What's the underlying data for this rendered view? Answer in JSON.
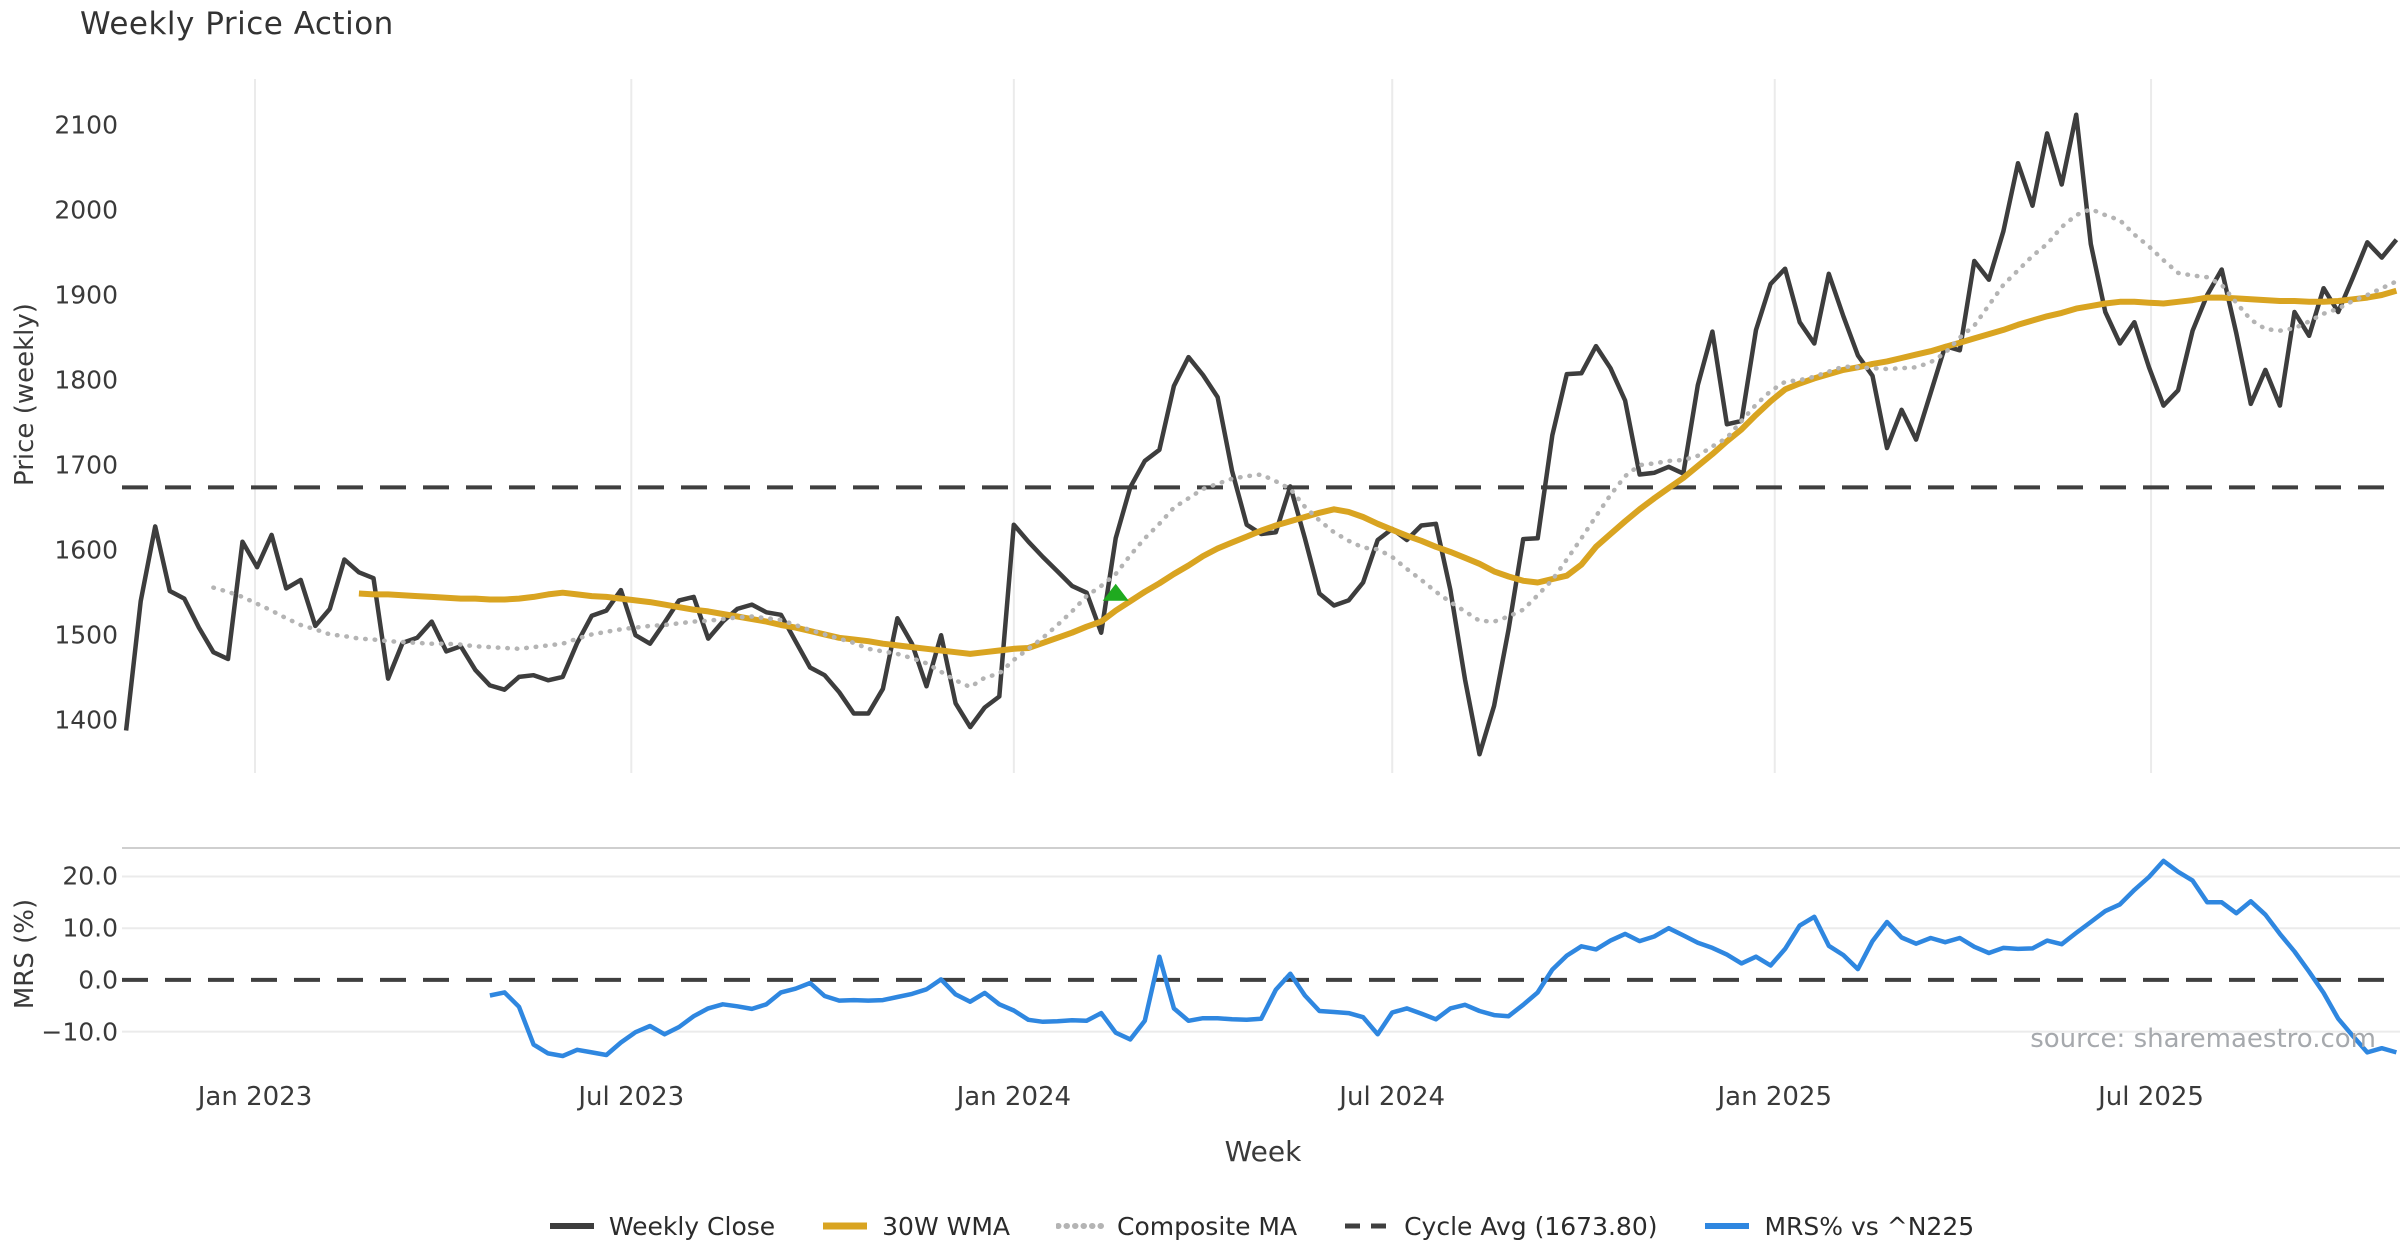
{
  "title": "Weekly Price Action",
  "source_note": "source: sharemaestro.com",
  "colors": {
    "weekly_close": "#3d3d3d",
    "wma_30w": "#d9a421",
    "composite_ma": "#b4b4b4",
    "cycle_avg": "#3f3f3f",
    "mrs_line": "#2f87e0",
    "marker_green": "#1faa1f",
    "gridline": "#ebebeb",
    "panel_spine": "#cfcfcf",
    "tick_text": "#3a3a3a",
    "source_text": "#a6a9ad"
  },
  "legend": {
    "items": [
      {
        "label": "Weekly Close",
        "style": "solid",
        "color": "#3d3d3d",
        "width": 5
      },
      {
        "label": "30W WMA",
        "style": "solid",
        "color": "#d9a421",
        "width": 6
      },
      {
        "label": "Composite MA",
        "style": "dotted",
        "color": "#b4b4b4",
        "width": 5
      },
      {
        "label": "Cycle Avg (1673.80)",
        "style": "dashed",
        "color": "#3f3f3f",
        "width": 4
      },
      {
        "label": "MRS% vs ^N225",
        "style": "solid",
        "color": "#2f87e0",
        "width": 5
      }
    ]
  },
  "chart_data": [
    {
      "type": "line",
      "panel": "price",
      "title": "Weekly Price Action",
      "xlabel": "Week",
      "ylabel": "Price (weekly)",
      "x_start_date": "2022-10-31",
      "x_step_days": 7,
      "ylim": [
        1338,
        2154
      ],
      "grid": "vertical",
      "legend_position": "bottom-center",
      "yticks": [
        {
          "label": "2100",
          "value": 2100
        },
        {
          "label": "2000",
          "value": 2000
        },
        {
          "label": "1900",
          "value": 1900
        },
        {
          "label": "1800",
          "value": 1800
        },
        {
          "label": "1700",
          "value": 1700
        },
        {
          "label": "1600",
          "value": 1600
        },
        {
          "label": "1500",
          "value": 1500
        },
        {
          "label": "1400",
          "value": 1400
        }
      ],
      "xticks": [
        {
          "label": "Jan 2023",
          "date": "2023-01-01"
        },
        {
          "label": "Jul 2023",
          "date": "2023-07-01"
        },
        {
          "label": "Jan 2024",
          "date": "2024-01-01"
        },
        {
          "label": "Jul 2024",
          "date": "2024-07-01"
        },
        {
          "label": "Jan 2025",
          "date": "2025-01-01"
        },
        {
          "label": "Jul 2025",
          "date": "2025-07-01"
        }
      ],
      "hline": {
        "label": "Cycle Avg (1673.80)",
        "value": 1673.8,
        "style": "dashed",
        "color": "#3f3f3f"
      },
      "marker": {
        "shape": "triangle-up",
        "color": "#1faa1f",
        "week_index": 68,
        "value": 1550
      },
      "series": [
        {
          "name": "Weekly Close",
          "color": "#3d3d3d",
          "style": "solid",
          "width": 4.5,
          "values": [
            1388,
            1540,
            1628,
            1552,
            1543,
            1509,
            1480,
            1472,
            1610,
            1580,
            1618,
            1555,
            1565,
            1511,
            1531,
            1589,
            1574,
            1567,
            1449,
            1491,
            1497,
            1516,
            1481,
            1487,
            1459,
            1441,
            1436,
            1451,
            1453,
            1447,
            1451,
            1491,
            1523,
            1529,
            1553,
            1500,
            1490,
            1515,
            1541,
            1545,
            1496,
            1516,
            1531,
            1536,
            1527,
            1524,
            1493,
            1462,
            1453,
            1433,
            1408,
            1408,
            1437,
            1520,
            1490,
            1440,
            1500,
            1420,
            1392,
            1415,
            1428,
            1630,
            1610,
            1592,
            1575,
            1558,
            1550,
            1503,
            1614,
            1674,
            1705,
            1718,
            1793,
            1827,
            1806,
            1780,
            1693,
            1630,
            1619,
            1621,
            1675,
            1614,
            1549,
            1535,
            1541,
            1562,
            1612,
            1625,
            1612,
            1629,
            1631,
            1553,
            1448,
            1360,
            1417,
            1507,
            1613,
            1614,
            1735,
            1807,
            1808,
            1840,
            1814,
            1776,
            1689,
            1691,
            1698,
            1690,
            1794,
            1857,
            1748,
            1752,
            1859,
            1913,
            1931,
            1868,
            1843,
            1925,
            1875,
            1829,
            1805,
            1720,
            1765,
            1730,
            1785,
            1840,
            1835,
            1940,
            1918,
            1975,
            2055,
            2005,
            2090,
            2030,
            2112,
            1960,
            1880,
            1843,
            1868,
            1815,
            1770,
            1788,
            1858,
            1900,
            1930,
            1855,
            1772,
            1812,
            1770,
            1880,
            1852,
            1908,
            1880,
            1920,
            1962,
            1944,
            1965
          ]
        },
        {
          "name": "30W WMA",
          "color": "#d9a421",
          "style": "solid",
          "width": 6,
          "values": [
            null,
            null,
            null,
            null,
            null,
            null,
            null,
            null,
            null,
            null,
            null,
            null,
            null,
            null,
            null,
            null,
            1549,
            1548,
            1548,
            1547,
            1546,
            1545,
            1544,
            1543,
            1543,
            1542,
            1542,
            1543,
            1545,
            1548,
            1550,
            1548,
            1546,
            1545,
            1543,
            1541,
            1539,
            1536,
            1533,
            1530,
            1528,
            1525,
            1522,
            1519,
            1516,
            1512,
            1509,
            1505,
            1501,
            1497,
            1495,
            1493,
            1490,
            1488,
            1486,
            1484,
            1482,
            1480,
            1478,
            1480,
            1482,
            1484,
            1485,
            1491,
            1497,
            1503,
            1510,
            1516,
            1529,
            1540,
            1551,
            1561,
            1572,
            1582,
            1593,
            1602,
            1609,
            1616,
            1623,
            1629,
            1634,
            1639,
            1644,
            1648,
            1645,
            1639,
            1631,
            1624,
            1617,
            1611,
            1604,
            1598,
            1591,
            1584,
            1575,
            1569,
            1564,
            1562,
            1566,
            1570,
            1583,
            1604,
            1619,
            1634,
            1648,
            1661,
            1673,
            1685,
            1699,
            1713,
            1728,
            1742,
            1759,
            1775,
            1789,
            1796,
            1802,
            1807,
            1812,
            1815,
            1819,
            1822,
            1826,
            1830,
            1834,
            1839,
            1844,
            1849,
            1854,
            1859,
            1865,
            1870,
            1875,
            1879,
            1884,
            1887,
            1890,
            1892,
            1892,
            1891,
            1890,
            1892,
            1894,
            1897,
            1897,
            1896,
            1895,
            1894,
            1893,
            1893,
            1892,
            1892,
            1893,
            1895,
            1897,
            1900,
            1905
          ]
        },
        {
          "name": "Composite MA",
          "color": "#b4b4b4",
          "style": "dotted",
          "width": 4.5,
          "values": [
            null,
            null,
            null,
            null,
            null,
            null,
            1556,
            1551,
            1545,
            1537,
            1529,
            1520,
            1512,
            1507,
            1501,
            1499,
            1496,
            1495,
            1493,
            1492,
            1491,
            1490,
            1490,
            1489,
            1487,
            1486,
            1485,
            1484,
            1486,
            1488,
            1490,
            1496,
            1501,
            1504,
            1507,
            1509,
            1511,
            1512,
            1514,
            1516,
            1517,
            1519,
            1521,
            1522,
            1520,
            1518,
            1512,
            1506,
            1501,
            1496,
            1491,
            1484,
            1481,
            1478,
            1473,
            1467,
            1457,
            1447,
            1439,
            1450,
            1455,
            1471,
            1484,
            1497,
            1512,
            1528,
            1546,
            1558,
            1572,
            1594,
            1614,
            1631,
            1650,
            1661,
            1672,
            1678,
            1684,
            1687,
            1689,
            1681,
            1672,
            1651,
            1635,
            1621,
            1611,
            1603,
            1601,
            1592,
            1578,
            1565,
            1551,
            1539,
            1528,
            1517,
            1516,
            1522,
            1530,
            1547,
            1565,
            1589,
            1614,
            1640,
            1665,
            1687,
            1700,
            1702,
            1705,
            1706,
            1711,
            1722,
            1732,
            1752,
            1771,
            1787,
            1798,
            1800,
            1804,
            1810,
            1816,
            1815,
            1814,
            1813,
            1814,
            1815,
            1821,
            1832,
            1850,
            1864,
            1888,
            1912,
            1929,
            1946,
            1960,
            1980,
            1994,
            2001,
            1994,
            1988,
            1971,
            1957,
            1941,
            1926,
            1923,
            1921,
            1912,
            1891,
            1871,
            1860,
            1858,
            1861,
            1869,
            1878,
            1884,
            1893,
            1900,
            1908,
            1916
          ]
        }
      ]
    },
    {
      "type": "line",
      "panel": "oscillator",
      "ylabel": "MRS (%)",
      "x_start_date": "2022-10-31",
      "x_step_days": 7,
      "ylim": [
        -17.6,
        25.5
      ],
      "grid": "horizontal",
      "yticks": [
        {
          "label": "20.0",
          "value": 20
        },
        {
          "label": "10.0",
          "value": 10
        },
        {
          "label": "0.0",
          "value": 0
        },
        {
          "label": "−10.0",
          "value": -10
        }
      ],
      "hline": {
        "label": "zero",
        "value": 0,
        "style": "dashed",
        "color": "#3f3f3f"
      },
      "series": [
        {
          "name": "MRS% vs ^N225",
          "color": "#2f87e0",
          "style": "solid",
          "width": 4.5,
          "values": [
            null,
            null,
            null,
            null,
            null,
            null,
            null,
            null,
            null,
            null,
            null,
            null,
            null,
            null,
            null,
            null,
            null,
            null,
            null,
            null,
            null,
            null,
            null,
            null,
            null,
            -3.0,
            -2.4,
            -5.2,
            -12.5,
            -14.2,
            -14.7,
            -13.5,
            -14.0,
            -14.5,
            -12.1,
            -10.1,
            -8.9,
            -10.5,
            -9.1,
            -7.0,
            -5.5,
            -4.7,
            -5.1,
            -5.6,
            -4.7,
            -2.4,
            -1.7,
            -0.6,
            -3.1,
            -4.0,
            -3.9,
            -4.0,
            -3.9,
            -3.3,
            -2.7,
            -1.8,
            0.1,
            -2.8,
            -4.2,
            -2.5,
            -4.7,
            -5.9,
            -7.7,
            -8.1,
            -8.0,
            -7.8,
            -7.9,
            -6.4,
            -10.2,
            -11.5,
            -7.9,
            4.5,
            -5.5,
            -7.9,
            -7.4,
            -7.4,
            -7.6,
            -7.7,
            -7.5,
            -1.9,
            1.2,
            -3.0,
            -6.0,
            -6.2,
            -6.4,
            -7.2,
            -10.5,
            -6.3,
            -5.5,
            -6.5,
            -7.6,
            -5.5,
            -4.8,
            -6.0,
            -6.8,
            -7.0,
            -4.8,
            -2.4,
            2.0,
            4.7,
            6.5,
            5.9,
            7.6,
            8.9,
            7.5,
            8.4,
            10.0,
            8.6,
            7.2,
            6.2,
            4.9,
            3.2,
            4.5,
            2.8,
            6.0,
            10.5,
            12.2,
            6.6,
            4.8,
            2.1,
            7.5,
            11.2,
            8.2,
            7.0,
            8.1,
            7.3,
            8.1,
            6.4,
            5.2,
            6.2,
            6.0,
            6.1,
            7.6,
            6.9,
            9.1,
            11.2,
            13.3,
            14.6,
            17.4,
            19.9,
            23.0,
            20.9,
            19.2,
            15.0,
            15.0,
            12.9,
            15.2,
            12.6,
            8.9,
            5.5,
            1.6,
            -2.5,
            -7.5,
            -10.8,
            -14.0,
            -13.2,
            -14.0
          ]
        }
      ]
    }
  ]
}
